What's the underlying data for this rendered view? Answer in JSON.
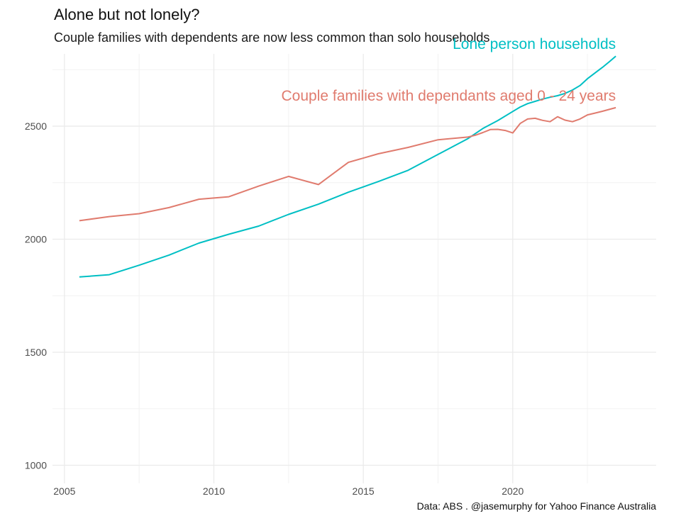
{
  "title": "Alone but not lonely?",
  "subtitle": "Couple families with dependents are now less common than solo households",
  "caption": "Data: ABS . @jasemurphy for Yahoo Finance Australia",
  "chart_data": {
    "type": "line",
    "xlabel": "",
    "ylabel": "",
    "xlim": [
      2004.6,
      2024.8
    ],
    "ylim": [
      920,
      2820
    ],
    "x_ticks": [
      2005,
      2010,
      2015,
      2020
    ],
    "y_ticks": [
      1000,
      1500,
      2000,
      2500
    ],
    "grid": true,
    "legend": "direct-labels",
    "series": [
      {
        "name": "Lone person households",
        "color": "#00BFC4",
        "points": [
          [
            2005.5,
            1833
          ],
          [
            2006.5,
            1843
          ],
          [
            2007.5,
            1885
          ],
          [
            2008.5,
            1930
          ],
          [
            2009.5,
            1983
          ],
          [
            2010.5,
            2022
          ],
          [
            2011.5,
            2058
          ],
          [
            2012.5,
            2110
          ],
          [
            2013.5,
            2155
          ],
          [
            2014.5,
            2208
          ],
          [
            2015.5,
            2255
          ],
          [
            2016.5,
            2305
          ],
          [
            2017.5,
            2375
          ],
          [
            2018.5,
            2445
          ],
          [
            2019.0,
            2490
          ],
          [
            2019.5,
            2525
          ],
          [
            2020.0,
            2565
          ],
          [
            2020.25,
            2585
          ],
          [
            2020.5,
            2600
          ],
          [
            2020.75,
            2610
          ],
          [
            2021.0,
            2620
          ],
          [
            2021.25,
            2628
          ],
          [
            2021.5,
            2635
          ],
          [
            2021.75,
            2645
          ],
          [
            2022.0,
            2660
          ],
          [
            2022.25,
            2680
          ],
          [
            2022.5,
            2710
          ],
          [
            2022.75,
            2735
          ],
          [
            2023.0,
            2760
          ],
          [
            2023.25,
            2787
          ],
          [
            2023.45,
            2810
          ]
        ]
      },
      {
        "name": "Couple families with dependants aged 0 - 24 years",
        "color": "#E07B6E",
        "points": [
          [
            2005.5,
            2082
          ],
          [
            2006.5,
            2100
          ],
          [
            2007.5,
            2113
          ],
          [
            2008.5,
            2140
          ],
          [
            2009.5,
            2177
          ],
          [
            2010.5,
            2188
          ],
          [
            2011.5,
            2235
          ],
          [
            2012.5,
            2278
          ],
          [
            2013.5,
            2242
          ],
          [
            2014.5,
            2340
          ],
          [
            2015.5,
            2378
          ],
          [
            2016.5,
            2406
          ],
          [
            2017.5,
            2440
          ],
          [
            2018.5,
            2452
          ],
          [
            2018.75,
            2460
          ],
          [
            2019.0,
            2472
          ],
          [
            2019.25,
            2485
          ],
          [
            2019.5,
            2486
          ],
          [
            2019.75,
            2481
          ],
          [
            2020.0,
            2470
          ],
          [
            2020.25,
            2512
          ],
          [
            2020.5,
            2532
          ],
          [
            2020.75,
            2535
          ],
          [
            2021.0,
            2526
          ],
          [
            2021.25,
            2520
          ],
          [
            2021.5,
            2542
          ],
          [
            2021.75,
            2527
          ],
          [
            2022.0,
            2520
          ],
          [
            2022.25,
            2532
          ],
          [
            2022.5,
            2550
          ],
          [
            2022.75,
            2558
          ],
          [
            2023.0,
            2566
          ],
          [
            2023.25,
            2575
          ],
          [
            2023.45,
            2582
          ]
        ]
      }
    ]
  }
}
